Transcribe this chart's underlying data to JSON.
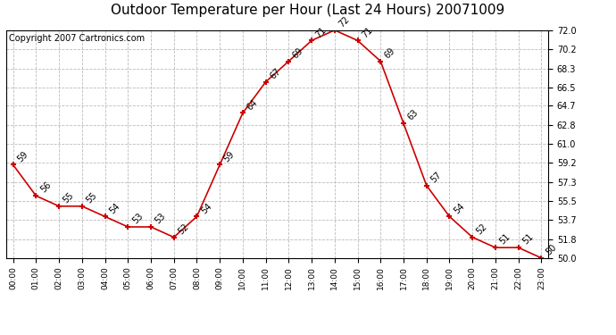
{
  "title": "Outdoor Temperature per Hour (Last 24 Hours) 20071009",
  "copyright": "Copyright 2007 Cartronics.com",
  "hours": [
    "00:00",
    "01:00",
    "02:00",
    "03:00",
    "04:00",
    "05:00",
    "06:00",
    "07:00",
    "08:00",
    "09:00",
    "10:00",
    "11:00",
    "12:00",
    "13:00",
    "14:00",
    "15:00",
    "16:00",
    "17:00",
    "18:00",
    "19:00",
    "20:00",
    "21:00",
    "22:00",
    "23:00"
  ],
  "temps": [
    59,
    56,
    55,
    55,
    54,
    53,
    53,
    52,
    54,
    59,
    64,
    67,
    69,
    71,
    72,
    71,
    69,
    63,
    57,
    54,
    52,
    51,
    51,
    50
  ],
  "ylim_min": 50.0,
  "ylim_max": 72.0,
  "yticks": [
    50.0,
    51.8,
    53.7,
    55.5,
    57.3,
    59.2,
    61.0,
    62.8,
    64.7,
    66.5,
    68.3,
    70.2,
    72.0
  ],
  "ytick_labels": [
    "50.0",
    "51.8",
    "53.7",
    "55.5",
    "57.3",
    "59.2",
    "61.0",
    "62.8",
    "64.7",
    "66.5",
    "68.3",
    "70.2",
    "72.0"
  ],
  "line_color": "#cc0000",
  "bg_color": "#ffffff",
  "grid_color": "#bbbbbb",
  "title_fontsize": 11,
  "copyright_fontsize": 7,
  "label_fontsize": 7
}
